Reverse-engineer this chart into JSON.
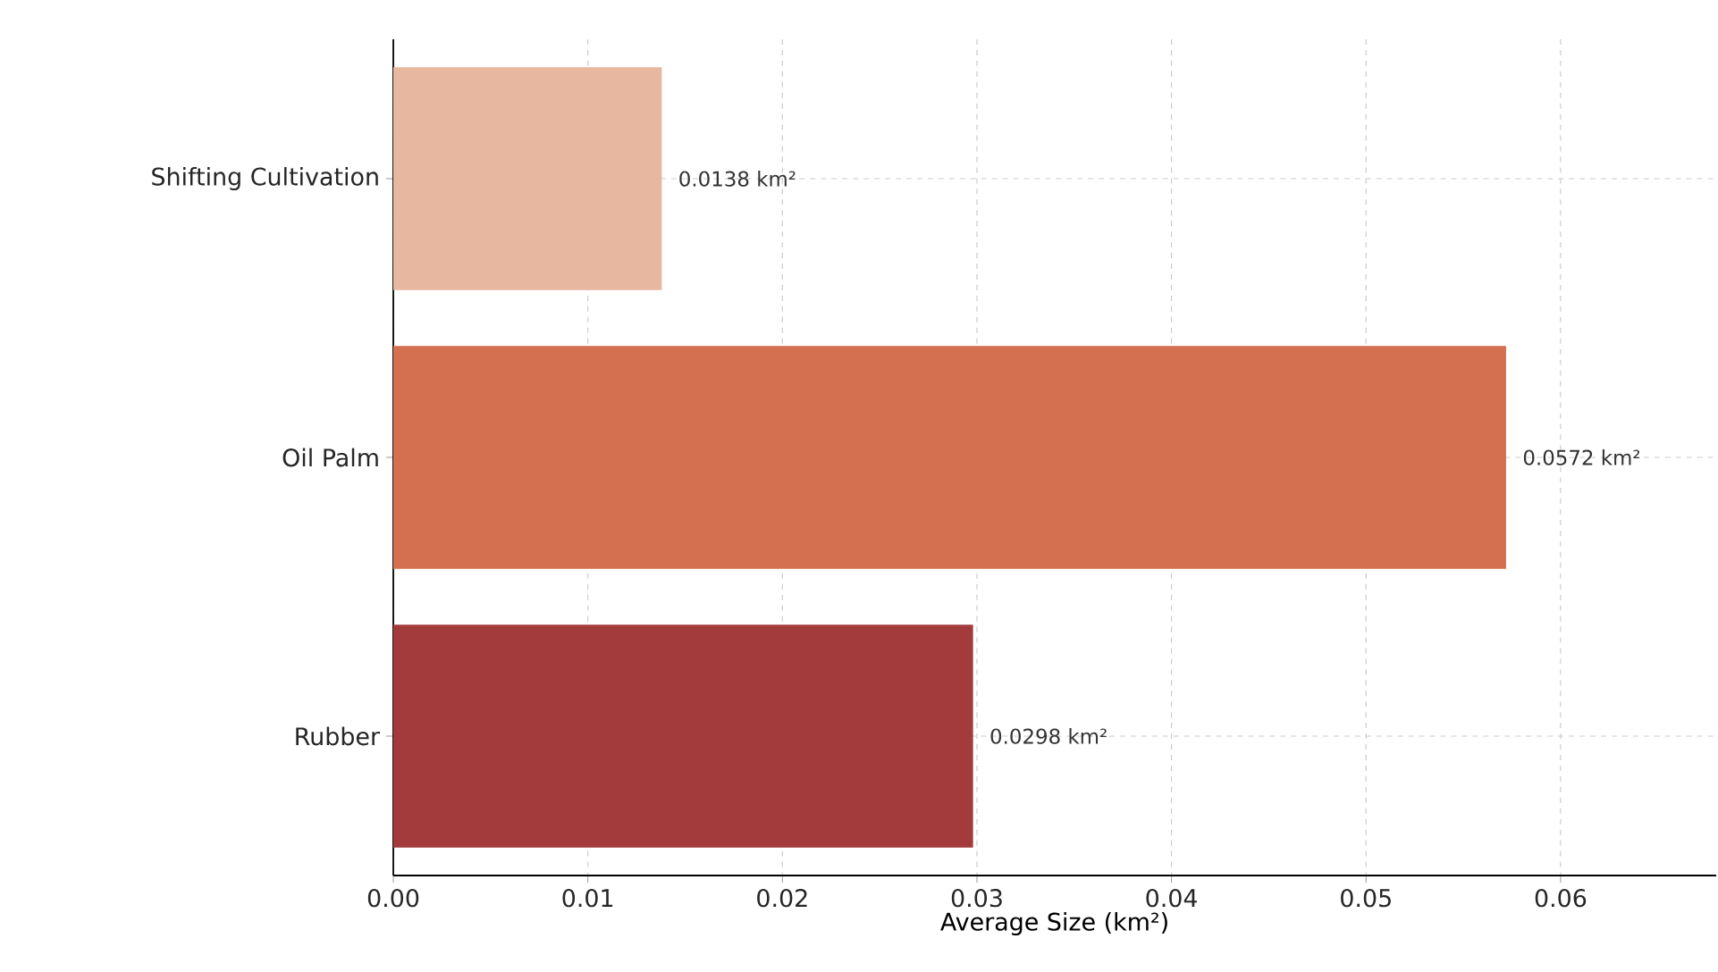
{
  "chart_data": {
    "type": "bar",
    "orientation": "horizontal",
    "xlabel": "Average Size (km²)",
    "categories": [
      "Shifting Cultivation",
      "Oil Palm",
      "Rubber"
    ],
    "values": [
      0.0138,
      0.0572,
      0.0298
    ],
    "value_labels": [
      "0.0138 km²",
      "0.0572 km²",
      "0.0298 km²"
    ],
    "colors": [
      "#e8b7a0",
      "#d4704f",
      "#a33b3c"
    ],
    "xlim": [
      0,
      0.068
    ],
    "xticks": [
      {
        "value": 0,
        "label": "0.00"
      },
      {
        "value": 0.01,
        "label": "0.01"
      },
      {
        "value": 0.02,
        "label": "0.02"
      },
      {
        "value": 0.03,
        "label": "0.03"
      },
      {
        "value": 0.04,
        "label": "0.04"
      },
      {
        "value": 0.05,
        "label": "0.05"
      },
      {
        "value": 0.06,
        "label": "0.06"
      }
    ],
    "grid": true
  }
}
